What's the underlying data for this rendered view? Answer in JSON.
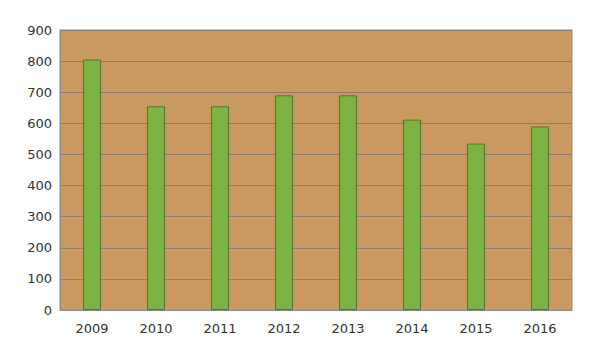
{
  "chart_data": {
    "type": "bar",
    "categories": [
      "2009",
      "2010",
      "2011",
      "2012",
      "2013",
      "2014",
      "2015",
      "2016"
    ],
    "values": [
      805,
      655,
      655,
      690,
      690,
      612,
      535,
      590
    ],
    "color": "#7cb342",
    "ylim": [
      0,
      900
    ],
    "yticks": [
      0,
      100,
      200,
      300,
      400,
      500,
      600,
      700,
      800,
      900
    ],
    "grid": true
  }
}
